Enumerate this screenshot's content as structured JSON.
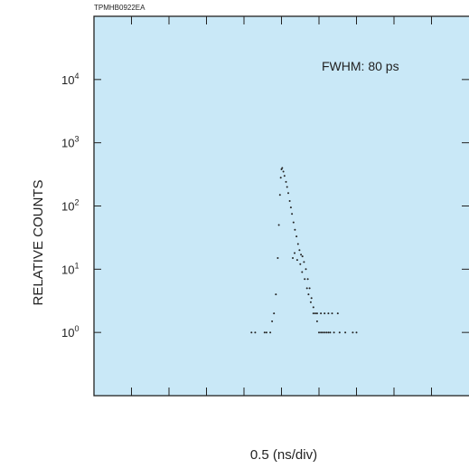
{
  "doc_id": "TPMHB0922EA",
  "chart_data": {
    "type": "scatter",
    "title": "",
    "xlabel": "0.5 (ns/div)",
    "ylabel": "RELATIVE COUNTS",
    "y_scale": "log",
    "ylim": [
      0.1,
      100000
    ],
    "xlim": [
      0,
      10
    ],
    "x_divisions": 10,
    "y_ticks": [
      {
        "value": 1,
        "base": "10",
        "exp": "0"
      },
      {
        "value": 10,
        "base": "10",
        "exp": "1"
      },
      {
        "value": 100,
        "base": "10",
        "exp": "2"
      },
      {
        "value": 1000,
        "base": "10",
        "exp": "3"
      },
      {
        "value": 10000,
        "base": "10",
        "exp": "4"
      }
    ],
    "annotation": "FWHM: 80 ps",
    "background_color": "#c9e8f7",
    "marker_color": "#222222",
    "grid": false,
    "series": [
      {
        "points": [
          [
            4.2,
            1
          ],
          [
            4.3,
            1
          ],
          [
            4.55,
            1
          ],
          [
            4.6,
            1
          ],
          [
            4.7,
            1
          ],
          [
            4.75,
            1.5
          ],
          [
            4.8,
            2
          ],
          [
            4.85,
            4
          ],
          [
            4.9,
            15
          ],
          [
            4.93,
            50
          ],
          [
            4.96,
            150
          ],
          [
            4.98,
            280
          ],
          [
            5.0,
            380
          ],
          [
            5.02,
            400
          ],
          [
            5.05,
            350
          ],
          [
            5.08,
            300
          ],
          [
            5.12,
            240
          ],
          [
            5.15,
            200
          ],
          [
            5.18,
            160
          ],
          [
            5.22,
            120
          ],
          [
            5.25,
            95
          ],
          [
            5.28,
            75
          ],
          [
            5.32,
            55
          ],
          [
            5.36,
            42
          ],
          [
            5.4,
            33
          ],
          [
            5.44,
            25
          ],
          [
            5.48,
            20
          ],
          [
            5.52,
            17
          ],
          [
            5.56,
            16
          ],
          [
            5.6,
            13
          ],
          [
            5.65,
            10
          ],
          [
            5.7,
            7
          ],
          [
            5.75,
            5
          ],
          [
            5.8,
            3.5
          ],
          [
            5.85,
            2.5
          ],
          [
            5.9,
            2
          ],
          [
            5.95,
            1.5
          ],
          [
            6.0,
            1
          ],
          [
            6.05,
            1
          ],
          [
            6.1,
            1
          ],
          [
            6.15,
            1
          ],
          [
            6.2,
            1
          ],
          [
            6.25,
            1
          ],
          [
            6.3,
            1
          ],
          [
            6.4,
            1
          ],
          [
            6.55,
            1
          ],
          [
            6.7,
            1
          ],
          [
            6.9,
            1
          ],
          [
            7.0,
            1
          ],
          [
            5.3,
            15
          ],
          [
            5.35,
            18
          ],
          [
            5.42,
            14
          ],
          [
            5.5,
            12
          ],
          [
            5.55,
            9
          ],
          [
            5.62,
            7
          ],
          [
            5.68,
            5
          ],
          [
            5.72,
            4
          ],
          [
            5.78,
            3
          ],
          [
            5.85,
            2
          ],
          [
            5.95,
            2
          ],
          [
            6.05,
            2
          ],
          [
            6.15,
            2
          ],
          [
            6.25,
            2
          ],
          [
            6.35,
            2
          ],
          [
            6.5,
            2
          ]
        ]
      }
    ]
  }
}
